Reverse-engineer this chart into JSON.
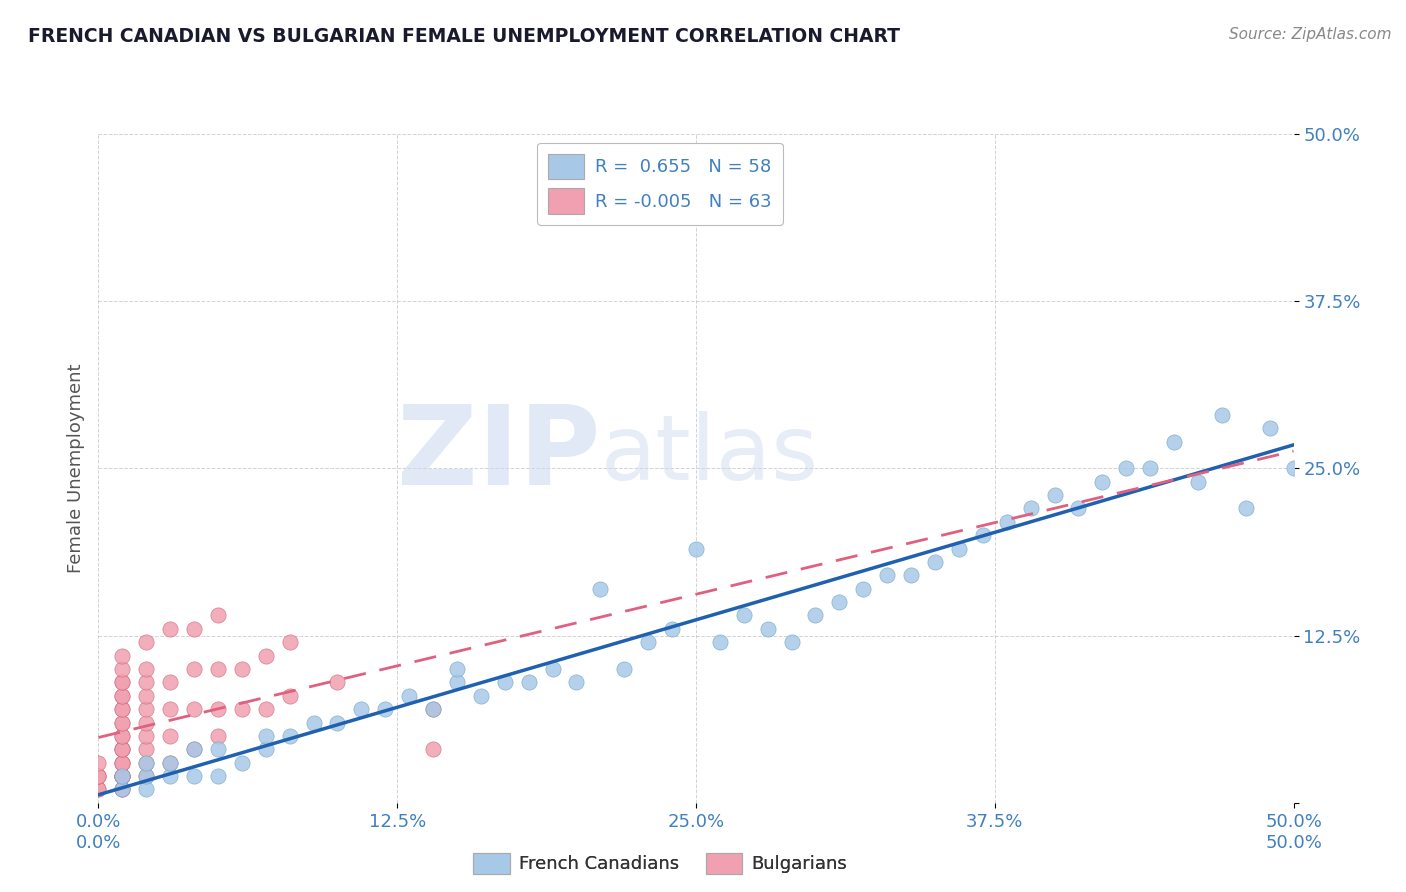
{
  "title": "FRENCH CANADIAN VS BULGARIAN FEMALE UNEMPLOYMENT CORRELATION CHART",
  "source": "Source: ZipAtlas.com",
  "ylabel": "Female Unemployment",
  "xlim": [
    0.0,
    0.5
  ],
  "ylim": [
    0.0,
    0.5
  ],
  "ytick_values": [
    0.0,
    0.125,
    0.25,
    0.375,
    0.5
  ],
  "ytick_labels": [
    "",
    "12.5%",
    "25.0%",
    "37.5%",
    "50.0%"
  ],
  "xtick_values": [
    0.0,
    0.125,
    0.25,
    0.375,
    0.5
  ],
  "xtick_labels": [
    "0.0%",
    "12.5%",
    "25.0%",
    "37.5%",
    "50.0%"
  ],
  "series": [
    {
      "name": "French Canadians",
      "color": "#a8c8e8",
      "border_color": "#7aaac8",
      "R": 0.655,
      "N": 58,
      "line_color": "#2060b0",
      "line_style": "solid",
      "x": [
        0.01,
        0.01,
        0.02,
        0.02,
        0.02,
        0.03,
        0.03,
        0.04,
        0.04,
        0.05,
        0.05,
        0.06,
        0.07,
        0.07,
        0.08,
        0.09,
        0.1,
        0.11,
        0.12,
        0.13,
        0.14,
        0.15,
        0.15,
        0.16,
        0.17,
        0.18,
        0.19,
        0.2,
        0.21,
        0.22,
        0.23,
        0.24,
        0.25,
        0.26,
        0.27,
        0.28,
        0.29,
        0.3,
        0.31,
        0.32,
        0.33,
        0.34,
        0.35,
        0.36,
        0.37,
        0.38,
        0.39,
        0.4,
        0.41,
        0.42,
        0.43,
        0.44,
        0.45,
        0.46,
        0.47,
        0.48,
        0.49,
        0.5
      ],
      "y": [
        0.01,
        0.02,
        0.01,
        0.02,
        0.03,
        0.02,
        0.03,
        0.02,
        0.04,
        0.02,
        0.04,
        0.03,
        0.04,
        0.05,
        0.05,
        0.06,
        0.06,
        0.07,
        0.07,
        0.08,
        0.07,
        0.09,
        0.1,
        0.08,
        0.09,
        0.09,
        0.1,
        0.09,
        0.16,
        0.1,
        0.12,
        0.13,
        0.19,
        0.12,
        0.14,
        0.13,
        0.12,
        0.14,
        0.15,
        0.16,
        0.17,
        0.17,
        0.18,
        0.19,
        0.2,
        0.21,
        0.22,
        0.23,
        0.22,
        0.24,
        0.25,
        0.25,
        0.27,
        0.24,
        0.29,
        0.22,
        0.28,
        0.25
      ]
    },
    {
      "name": "Bulgarians",
      "color": "#f0a0b0",
      "border_color": "#d07080",
      "R": -0.005,
      "N": 63,
      "line_color": "#e06080",
      "line_style": "dashed",
      "x": [
        0.0,
        0.0,
        0.0,
        0.0,
        0.0,
        0.0,
        0.01,
        0.01,
        0.01,
        0.01,
        0.01,
        0.01,
        0.01,
        0.01,
        0.01,
        0.01,
        0.01,
        0.01,
        0.01,
        0.01,
        0.01,
        0.01,
        0.01,
        0.01,
        0.01,
        0.01,
        0.01,
        0.01,
        0.01,
        0.01,
        0.01,
        0.02,
        0.02,
        0.02,
        0.02,
        0.02,
        0.02,
        0.02,
        0.02,
        0.02,
        0.02,
        0.03,
        0.03,
        0.03,
        0.03,
        0.03,
        0.04,
        0.04,
        0.04,
        0.04,
        0.05,
        0.05,
        0.05,
        0.05,
        0.06,
        0.06,
        0.07,
        0.07,
        0.08,
        0.08,
        0.1,
        0.14,
        0.14
      ],
      "y": [
        0.01,
        0.01,
        0.02,
        0.02,
        0.02,
        0.03,
        0.01,
        0.01,
        0.02,
        0.02,
        0.02,
        0.02,
        0.02,
        0.03,
        0.03,
        0.03,
        0.04,
        0.04,
        0.04,
        0.05,
        0.05,
        0.06,
        0.06,
        0.07,
        0.07,
        0.08,
        0.08,
        0.09,
        0.09,
        0.1,
        0.11,
        0.02,
        0.03,
        0.04,
        0.05,
        0.06,
        0.07,
        0.08,
        0.09,
        0.1,
        0.12,
        0.03,
        0.05,
        0.07,
        0.09,
        0.13,
        0.04,
        0.07,
        0.1,
        0.13,
        0.05,
        0.07,
        0.1,
        0.14,
        0.07,
        0.1,
        0.07,
        0.11,
        0.08,
        0.12,
        0.09,
        0.04,
        0.07
      ]
    }
  ],
  "watermark_zip": "ZIP",
  "watermark_atlas": "atlas",
  "background_color": "#ffffff",
  "grid_color": "#c8c8c8",
  "title_color": "#1a1a2e",
  "axis_label_color": "#555555",
  "tick_label_color": "#4080c0",
  "source_color": "#888888",
  "legend_text_color": "#4080c0"
}
